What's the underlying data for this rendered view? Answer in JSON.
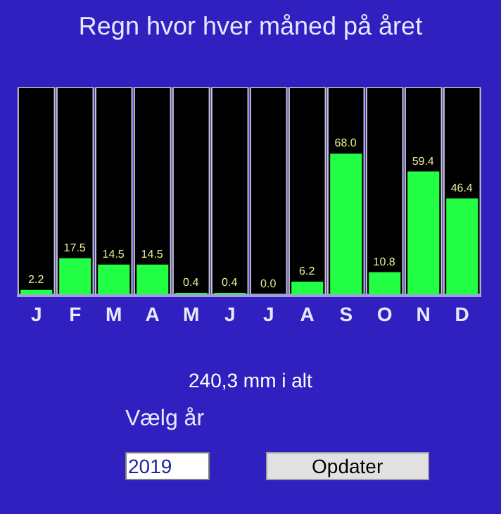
{
  "chart_data": {
    "type": "bar",
    "title": "Regn hvor hver måned på året",
    "categories": [
      "J",
      "F",
      "M",
      "A",
      "M",
      "J",
      "J",
      "A",
      "S",
      "O",
      "N",
      "D"
    ],
    "values": [
      2.2,
      17.5,
      14.5,
      14.5,
      0.4,
      0.4,
      0.0,
      6.2,
      68.0,
      10.8,
      59.4,
      46.4
    ],
    "value_labels": [
      "2.2",
      "17.5",
      "14.5",
      "14.5",
      "0.4",
      "0.4",
      "0.0",
      "6.2",
      "68.0",
      "10.8",
      "59.4",
      "46.4"
    ],
    "color": "#22ff44",
    "ylim": [
      0,
      100
    ],
    "tick_labels": "x",
    "grid": false,
    "legend": false,
    "annotations": [
      "240,3 mm i alt",
      "Vælg år",
      "2019",
      "Opdater"
    ]
  }
}
